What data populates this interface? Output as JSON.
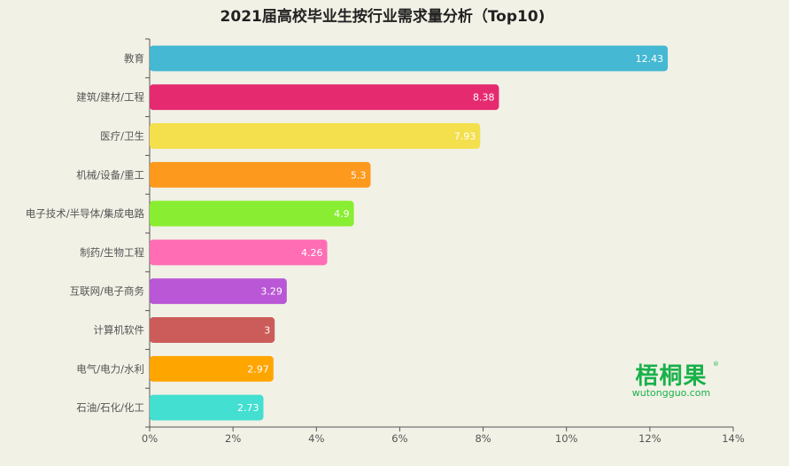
{
  "chart_data": {
    "type": "bar",
    "orientation": "horizontal",
    "title": "2021届高校毕业生按行业需求量分析（Top10)",
    "categories": [
      "教育",
      "建筑/建材/工程",
      "医疗/卫生",
      "机械/设备/重工",
      "电子技术/半导体/集成电路",
      "制药/生物工程",
      "互联网/电子商务",
      "计算机软件",
      "电气/电力/水利",
      "石油/石化/化工"
    ],
    "values": [
      12.43,
      8.38,
      7.93,
      5.3,
      4.9,
      4.26,
      3.29,
      3,
      2.97,
      2.73
    ],
    "value_labels": [
      "12.43",
      "8.38",
      "7.93",
      "5.3",
      "4.9",
      "4.26",
      "3.29",
      "3",
      "2.97",
      "2.73"
    ],
    "colors": [
      "#45b8d3",
      "#e62a70",
      "#f4e04d",
      "#fd991c",
      "#89ee32",
      "#ff6db5",
      "#b957d6",
      "#cc5c5a",
      "#ffa500",
      "#43dfd0"
    ],
    "xlim": [
      0,
      14
    ],
    "xticks": [
      0,
      2,
      4,
      6,
      8,
      10,
      12,
      14
    ],
    "xtick_labels": [
      "0%",
      "2%",
      "4%",
      "6%",
      "8%",
      "10%",
      "12%",
      "14%"
    ],
    "xlabel": "",
    "ylabel": "",
    "grid": false,
    "legend": "none"
  },
  "watermark": {
    "text_cn": "梧桐果",
    "text_en": "wutongguo.com",
    "mark": "®",
    "color": "#19b14a"
  }
}
